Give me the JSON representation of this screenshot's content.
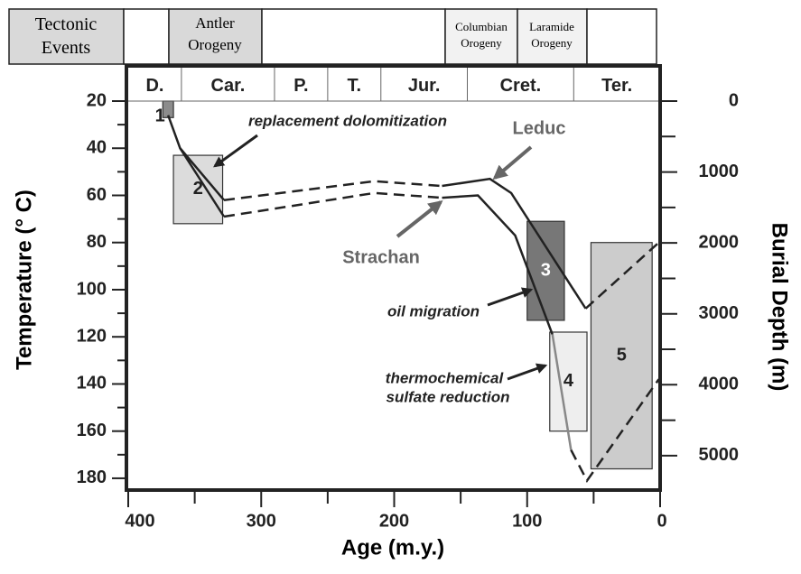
{
  "chart_data": {
    "type": "line",
    "header_label": "Tectonic Events",
    "events": [
      "Antler Orogeny",
      "Columbian Orogeny",
      "Laramide Orogeny"
    ],
    "periods": [
      {
        "label": "D.",
        "start": 400,
        "end": 360
      },
      {
        "label": "Car.",
        "start": 360,
        "end": 290
      },
      {
        "label": "P.",
        "start": 290,
        "end": 250
      },
      {
        "label": "T.",
        "start": 250,
        "end": 210
      },
      {
        "label": "Jur.",
        "start": 210,
        "end": 145
      },
      {
        "label": "Cret.",
        "start": 145,
        "end": 65
      },
      {
        "label": "Ter.",
        "start": 65,
        "end": 0
      }
    ],
    "x_label": "Age (m.y.)",
    "y_label": "Temperature (° C)",
    "y2_label": "Burial Depth (m)",
    "xlim": [
      400,
      0
    ],
    "xticks": [
      400,
      300,
      200,
      100,
      0
    ],
    "xminor_ticks": [
      350,
      250,
      150,
      50
    ],
    "ylim": [
      185,
      20
    ],
    "yticks": [
      20,
      40,
      60,
      80,
      100,
      120,
      140,
      160,
      180
    ],
    "yminor_ticks": [
      30,
      50,
      70,
      90,
      110,
      130,
      150,
      170
    ],
    "y2lim": [
      5485,
      0
    ],
    "y2ticks": [
      0,
      1000,
      2000,
      3000,
      4000,
      5000
    ],
    "y2minor_ticks": [
      500,
      1500,
      2500,
      3500,
      4500
    ],
    "boxes": [
      {
        "label": "1",
        "x": [
          374,
          366
        ],
        "y": [
          20,
          27
        ],
        "color": "#8c8c8c"
      },
      {
        "label": "2",
        "x": [
          366,
          329
        ],
        "y": [
          43,
          72
        ],
        "color": "#dcdcdc"
      },
      {
        "label": "3",
        "x": [
          100,
          72
        ],
        "y": [
          71,
          113
        ],
        "color": "#777777"
      },
      {
        "label": "4",
        "x": [
          83,
          55
        ],
        "y": [
          118,
          160
        ],
        "color": "#eeeeee"
      },
      {
        "label": "5",
        "x": [
          52,
          6
        ],
        "y": [
          80,
          176
        ],
        "color": "#cccccc"
      }
    ],
    "series": [
      {
        "x": [
          370,
          361,
          328
        ],
        "values": [
          26,
          40,
          62
        ],
        "style": "solid",
        "color": "#222222"
      },
      {
        "x": [
          328,
          215,
          164
        ],
        "values": [
          62,
          54,
          56
        ],
        "style": "dashed",
        "color": "#222222"
      },
      {
        "x": [
          164,
          128,
          112,
          56
        ],
        "values": [
          56,
          53,
          59,
          108
        ],
        "style": "solid",
        "color": "#222222"
      },
      {
        "x": [
          56,
          1
        ],
        "values": [
          108,
          80
        ],
        "style": "dashed",
        "color": "#222222"
      },
      {
        "x": [
          361,
          328
        ],
        "values": [
          40,
          69
        ],
        "style": "solid",
        "color": "#222222"
      },
      {
        "x": [
          328,
          215,
          164
        ],
        "values": [
          69,
          59,
          61
        ],
        "style": "dashed",
        "color": "#222222"
      },
      {
        "x": [
          164,
          137,
          109,
          81
        ],
        "values": [
          61,
          60,
          77,
          119
        ],
        "style": "solid",
        "color": "#222222"
      },
      {
        "x": [
          81,
          67
        ],
        "values": [
          119,
          168
        ],
        "style": "solid",
        "color": "#888888"
      },
      {
        "x": [
          67,
          55,
          1
        ],
        "values": [
          168,
          181,
          138
        ],
        "style": "dashed",
        "color": "#222222"
      }
    ],
    "annotations": [
      "replacement dolomitization",
      "Leduc",
      "Strachan",
      "oil migration",
      "thermochemical",
      "sulfate reduction"
    ]
  }
}
